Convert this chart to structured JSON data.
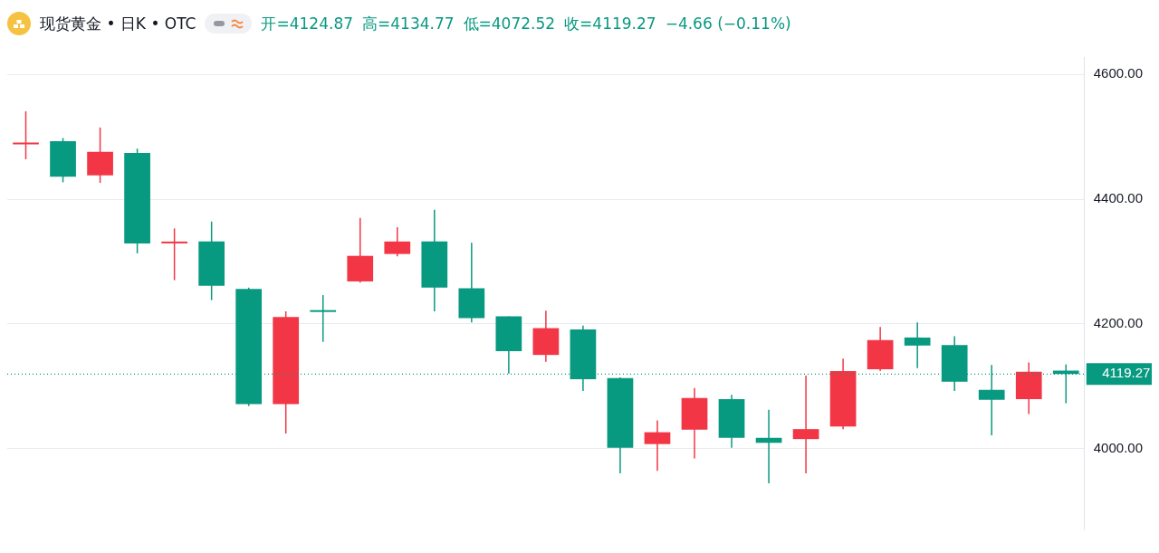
{
  "chart_data": {
    "type": "candlestick",
    "title": "现货黄金 • 日K • OTC",
    "annotations": [
      "开=4124.87",
      "高=4134.77",
      "低=4072.52",
      "收=4119.27",
      "−4.66 (−0.11%)"
    ],
    "categories": [
      null,
      null,
      null,
      null,
      null,
      null,
      null,
      null,
      null,
      null,
      null,
      null,
      null,
      null,
      null,
      null,
      null,
      null,
      null,
      null,
      null,
      null,
      null,
      null,
      null,
      null,
      null,
      null,
      null
    ],
    "ohlc": [
      [
        4488,
        4541,
        4464,
        4490
      ],
      [
        4493,
        4498,
        4427,
        4436
      ],
      [
        4438,
        4515,
        4426,
        4476
      ],
      [
        4474,
        4481,
        4313,
        4329
      ],
      [
        4329,
        4353,
        4270,
        4331
      ],
      [
        4332,
        4364,
        4238,
        4261
      ],
      [
        4256,
        4258,
        4068,
        4071
      ],
      [
        4071,
        4220,
        4024,
        4211
      ],
      [
        4220,
        4246,
        4171,
        4219
      ],
      [
        4268,
        4370,
        4266,
        4309
      ],
      [
        4312,
        4355,
        4308,
        4332
      ],
      [
        4332,
        4383,
        4220,
        4258
      ],
      [
        4257,
        4330,
        4202,
        4209
      ],
      [
        4212,
        4212,
        4120,
        4156
      ],
      [
        4150,
        4221,
        4139,
        4193
      ],
      [
        4191,
        4197,
        4092,
        4111
      ],
      [
        4113,
        4114,
        3960,
        4001
      ],
      [
        4007,
        4045,
        3964,
        4026
      ],
      [
        4030,
        4097,
        3984,
        4081
      ],
      [
        4079,
        4086,
        4001,
        4017
      ],
      [
        4017,
        4062,
        3944,
        4009
      ],
      [
        4015,
        4117,
        3960,
        4031
      ],
      [
        4035,
        4144,
        4031,
        4124
      ],
      [
        4127,
        4195,
        4124,
        4174
      ],
      [
        4178,
        4202,
        4129,
        4165
      ],
      [
        4166,
        4180,
        4092,
        4107
      ],
      [
        4094,
        4134,
        4021,
        4078
      ],
      [
        4079,
        4138,
        4055,
        4123
      ],
      [
        4124.87,
        4134.77,
        4072.52,
        4119.27
      ]
    ],
    "colors": [
      "#f23645",
      "#089981",
      "#f23645",
      "#089981",
      "#f23645",
      "#089981",
      "#089981",
      "#f23645",
      "#089981",
      "#f23645",
      "#f23645",
      "#089981",
      "#089981",
      "#089981",
      "#f23645",
      "#089981",
      "#089981",
      "#f23645",
      "#f23645",
      "#089981",
      "#089981",
      "#f23645",
      "#f23645",
      "#f23645",
      "#089981",
      "#089981",
      "#089981",
      "#f23645",
      "#089981"
    ],
    "ylim": [
      3870,
      4628
    ],
    "yticks": [
      {
        "value": 4000,
        "label": "4000.00"
      },
      {
        "value": 4200,
        "label": "4200.00"
      },
      {
        "value": 4400,
        "label": "4400.00"
      },
      {
        "value": 4600,
        "label": "4600.00"
      }
    ],
    "ref_lines": [
      {
        "axis": "y",
        "value": 4119.27,
        "label": "4119.27",
        "color": "#089981",
        "line_style": "dotted"
      }
    ],
    "grid": "y"
  }
}
